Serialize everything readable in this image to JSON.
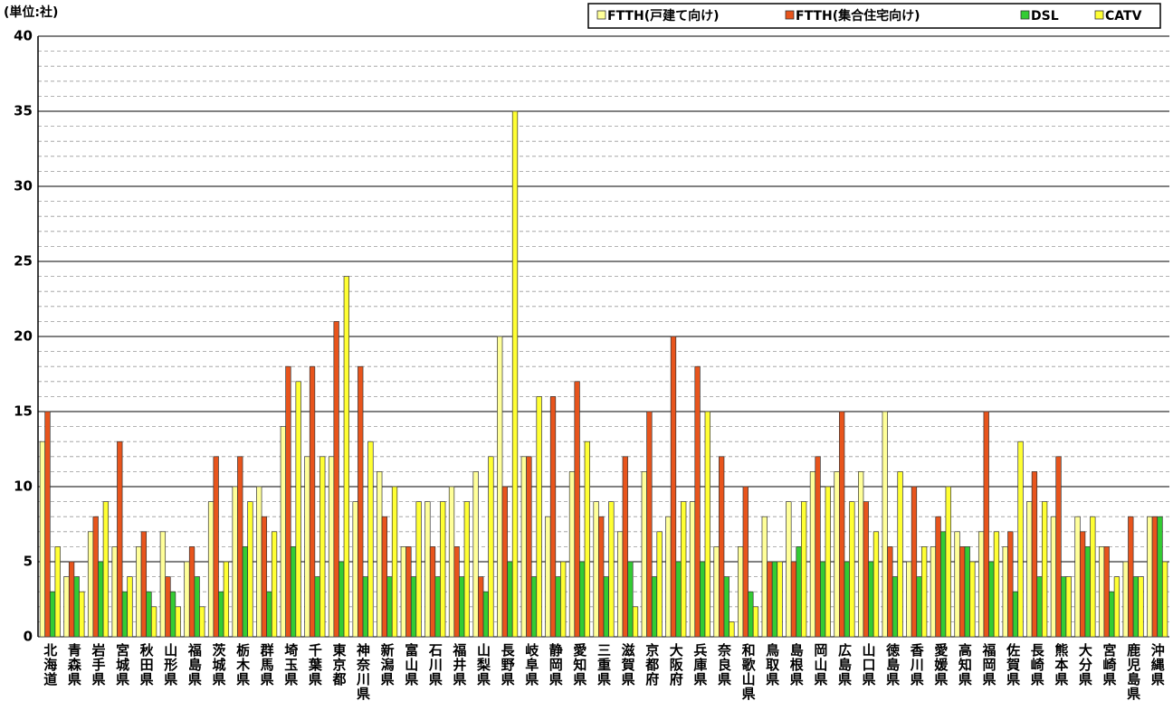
{
  "chart_data": {
    "type": "bar",
    "unit_label": "(単位:社)",
    "categories": [
      "北海道",
      "青森県",
      "岩手県",
      "宮城県",
      "秋田県",
      "山形県",
      "福島県",
      "茨城県",
      "栃木県",
      "群馬県",
      "埼玉県",
      "千葉県",
      "東京都",
      "神奈川県",
      "新潟県",
      "富山県",
      "石川県",
      "福井県",
      "山梨県",
      "長野県",
      "岐阜県",
      "静岡県",
      "愛知県",
      "三重県",
      "滋賀県",
      "京都府",
      "大阪府",
      "兵庫県",
      "奈良県",
      "和歌山県",
      "鳥取県",
      "島根県",
      "岡山県",
      "広島県",
      "山口県",
      "徳島県",
      "香川県",
      "愛媛県",
      "高知県",
      "福岡県",
      "佐賀県",
      "長崎県",
      "熊本県",
      "大分県",
      "宮崎県",
      "鹿児島県",
      "沖縄県"
    ],
    "series": [
      {
        "name": "FTTH(戸建て向け)",
        "color": "#ffff99",
        "values": [
          13,
          4,
          7,
          6,
          6,
          7,
          5,
          9,
          10,
          10,
          14,
          12,
          12,
          9,
          11,
          6,
          9,
          10,
          11,
          20,
          12,
          8,
          11,
          9,
          7,
          11,
          8,
          9,
          6,
          6,
          8,
          9,
          11,
          11,
          11,
          15,
          5,
          6,
          7,
          7,
          6,
          9,
          8,
          8,
          6,
          5,
          8
        ]
      },
      {
        "name": "FTTH(集合住宅向け)",
        "color": "#e8541c",
        "values": [
          15,
          5,
          8,
          13,
          7,
          4,
          6,
          12,
          12,
          8,
          18,
          18,
          21,
          18,
          8,
          6,
          6,
          6,
          4,
          10,
          12,
          16,
          17,
          8,
          12,
          15,
          20,
          18,
          12,
          10,
          5,
          5,
          12,
          15,
          9,
          6,
          10,
          8,
          6,
          15,
          7,
          11,
          12,
          7,
          6,
          8,
          8
        ]
      },
      {
        "name": "DSL",
        "color": "#33cc33",
        "values": [
          3,
          4,
          5,
          3,
          3,
          3,
          4,
          3,
          6,
          3,
          6,
          4,
          5,
          4,
          4,
          4,
          4,
          4,
          3,
          5,
          4,
          4,
          5,
          4,
          5,
          4,
          5,
          5,
          4,
          3,
          5,
          6,
          5,
          5,
          5,
          4,
          4,
          7,
          6,
          5,
          3,
          4,
          4,
          6,
          3,
          4,
          8
        ]
      },
      {
        "name": "CATV",
        "color": "#ffff33",
        "values": [
          6,
          3,
          9,
          4,
          2,
          2,
          2,
          5,
          9,
          7,
          17,
          12,
          24,
          13,
          10,
          9,
          9,
          9,
          12,
          35,
          16,
          5,
          13,
          9,
          2,
          7,
          9,
          15,
          1,
          2,
          5,
          9,
          10,
          9,
          7,
          11,
          6,
          10,
          5,
          7,
          13,
          9,
          4,
          8,
          4,
          4,
          5
        ]
      }
    ],
    "ylim": [
      0,
      40
    ],
    "yticks": [
      0,
      5,
      10,
      15,
      20,
      25,
      30,
      35,
      40
    ],
    "grid": true
  }
}
